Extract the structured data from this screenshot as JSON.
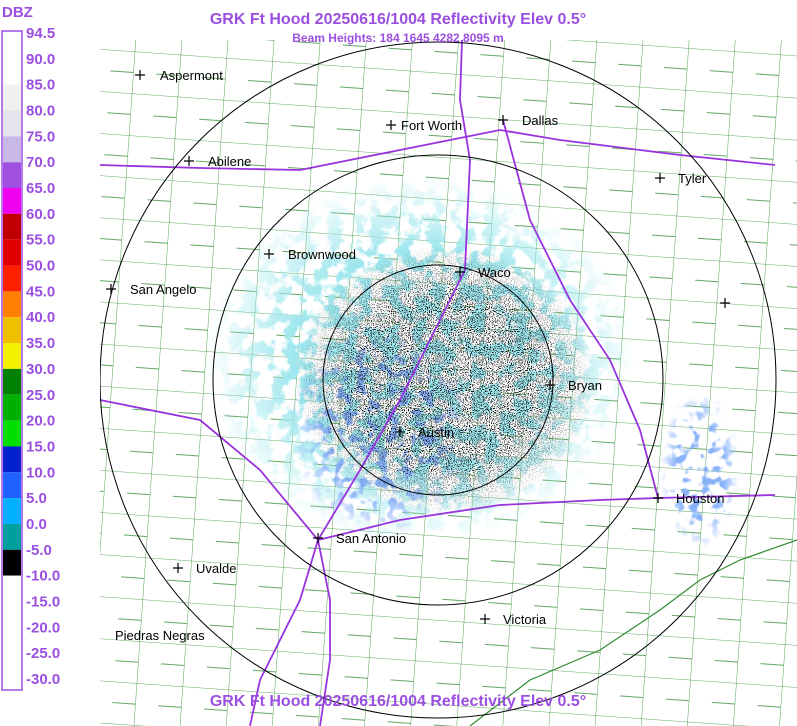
{
  "header": {
    "title": "GRK Ft Hood 20250616/1004 Reflectivity Elev 0.5°",
    "subtitle": "Beam Heights: 184 1645 4282 8095 m"
  },
  "legend": {
    "unit": "DBZ",
    "levels": [
      {
        "label": "94.5",
        "color": "#ffffff"
      },
      {
        "label": "90.0",
        "color": "#ffffff"
      },
      {
        "label": "85.0",
        "color": "#f0f0f0"
      },
      {
        "label": "80.0",
        "color": "#e4e4ec"
      },
      {
        "label": "75.0",
        "color": "#c8b8e8"
      },
      {
        "label": "70.0",
        "color": "#a050e0"
      },
      {
        "label": "65.0",
        "color": "#f000f0"
      },
      {
        "label": "60.0",
        "color": "#c00000"
      },
      {
        "label": "55.0",
        "color": "#e00000"
      },
      {
        "label": "50.0",
        "color": "#ff2000"
      },
      {
        "label": "45.0",
        "color": "#ff8000"
      },
      {
        "label": "40.0",
        "color": "#f0c000"
      },
      {
        "label": "35.0",
        "color": "#f0f000"
      },
      {
        "label": "30.0",
        "color": "#008000"
      },
      {
        "label": "25.0",
        "color": "#00b000"
      },
      {
        "label": "20.0",
        "color": "#00e000"
      },
      {
        "label": "15.0",
        "color": "#0020d0"
      },
      {
        "label": "10.0",
        "color": "#2060ff"
      },
      {
        "label": "5.0",
        "color": "#00b0ff"
      },
      {
        "label": "0.0",
        "color": "#00a0a0"
      },
      {
        "label": "-5.0",
        "color": "#000000"
      },
      {
        "label": "-10.0",
        "color": "#ffffff"
      },
      {
        "label": "-15.0",
        "color": "#ffffff"
      },
      {
        "label": "-20.0",
        "color": "#ffffff"
      },
      {
        "label": "-25.0",
        "color": "#ffffff"
      },
      {
        "label": "-30.0",
        "color": "#ffffff"
      }
    ]
  },
  "cities": [
    "Aspermont",
    "Fort Worth",
    "Dallas",
    "Abilene",
    "Tyler",
    "Brownwood",
    "Waco",
    "San Angelo",
    "Bryan",
    "Austin",
    "Houston",
    "San Antonio",
    "Uvalde",
    "Victoria",
    "Piedras Negras"
  ]
}
